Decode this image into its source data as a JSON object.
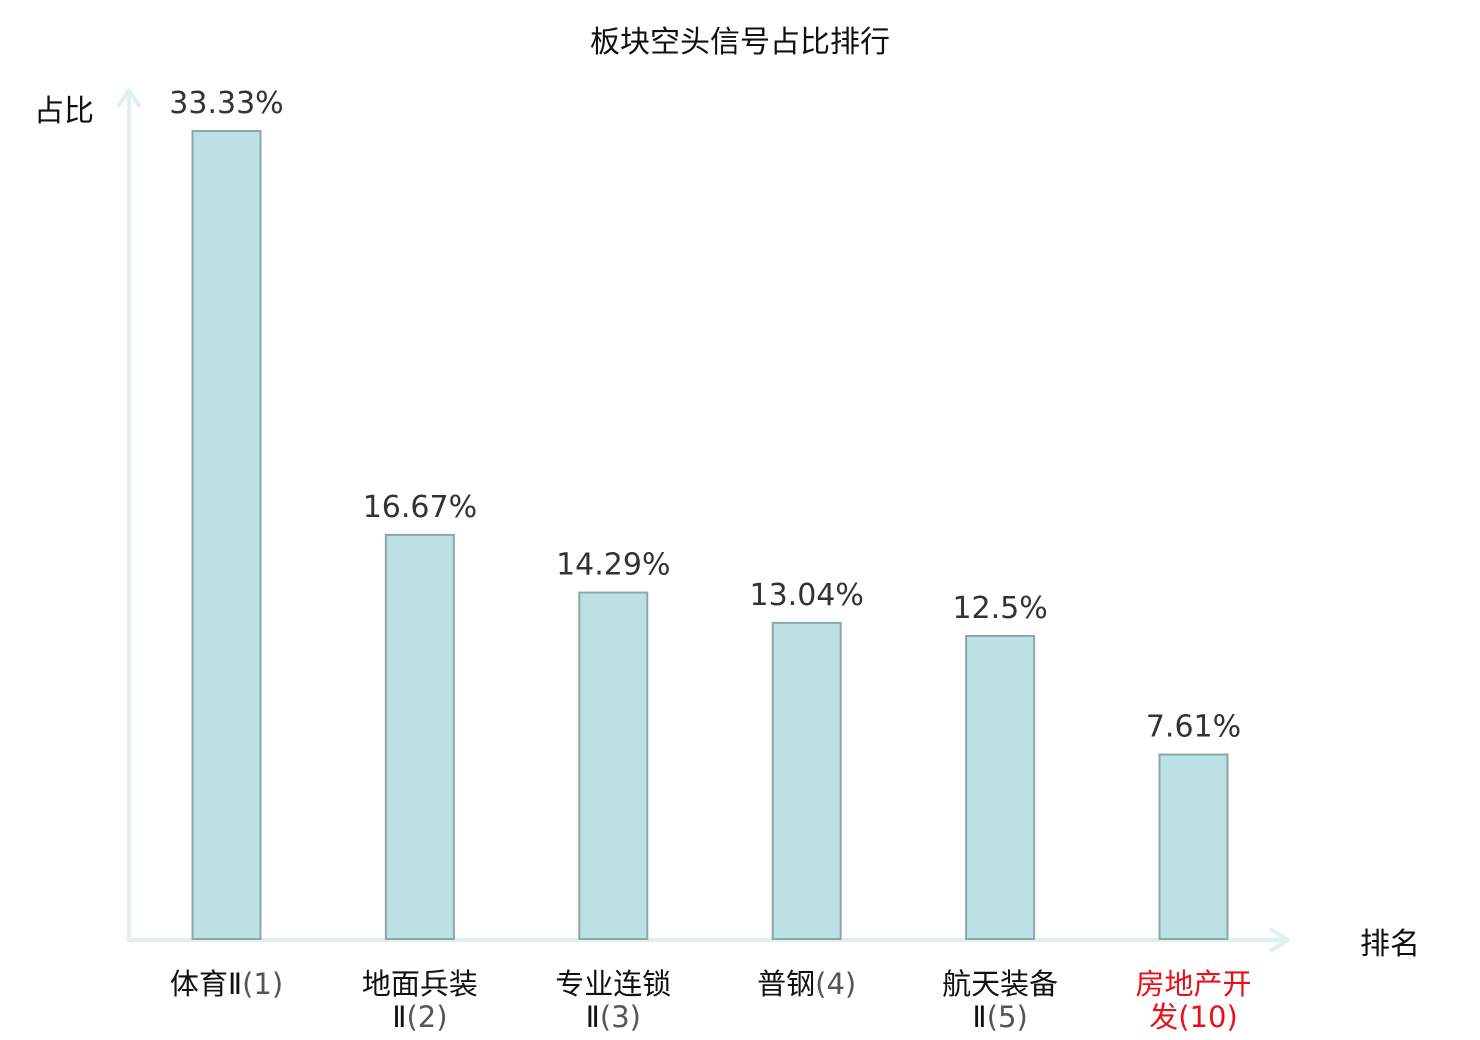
{
  "chart_data": {
    "type": "bar",
    "title": "板块空头信号占比排行",
    "ylabel": "占比",
    "xlabel": "排名",
    "ylim": [
      0,
      35
    ],
    "categories": [
      {
        "name_lines": [
          "体育Ⅱ"
        ],
        "rank": "(1)",
        "highlight": false
      },
      {
        "name_lines": [
          "地面兵装",
          "Ⅱ"
        ],
        "rank": "(2)",
        "highlight": false
      },
      {
        "name_lines": [
          "专业连锁",
          "Ⅱ"
        ],
        "rank": "(3)",
        "highlight": false
      },
      {
        "name_lines": [
          "普钢"
        ],
        "rank": "(4)",
        "highlight": false
      },
      {
        "name_lines": [
          "航天装备",
          "Ⅱ"
        ],
        "rank": "(5)",
        "highlight": false
      },
      {
        "name_lines": [
          "房地产开",
          "发"
        ],
        "rank": "(10)",
        "highlight": true
      }
    ],
    "values": [
      33.33,
      16.67,
      14.29,
      13.04,
      12.5,
      7.61
    ],
    "value_labels": [
      "33.33%",
      "16.67%",
      "14.29%",
      "13.04%",
      "12.5%",
      "7.61%"
    ],
    "grid": false,
    "legend": "none",
    "colors": {
      "bar_fill": "#bce0e3",
      "bar_stroke": "#8aa8ab",
      "axis": "#dff1ee",
      "text": "#111111",
      "rank_text": "#555555",
      "value_text": "#333333",
      "highlight": "#e8111a"
    }
  }
}
